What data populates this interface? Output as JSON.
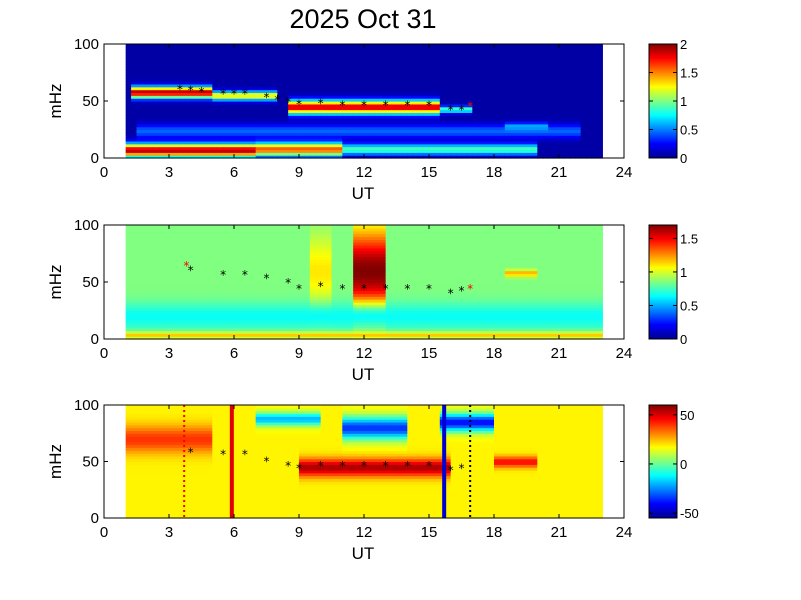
{
  "title": "2025 Oct 31",
  "colormap": [
    "#00008f",
    "#0000ff",
    "#0080ff",
    "#00ffff",
    "#80ff80",
    "#ffff00",
    "#ff8000",
    "#ff0000",
    "#800000"
  ],
  "chart_data": [
    {
      "type": "heatmap",
      "name": "panel-1",
      "xlabel": "UT",
      "ylabel": "mHz",
      "xlim": [
        0,
        24
      ],
      "ylim": [
        0,
        100
      ],
      "xticks": [
        "0",
        "3",
        "6",
        "9",
        "12",
        "15",
        "18",
        "21",
        "24"
      ],
      "yticks": [
        "0",
        "50",
        "100"
      ],
      "data_range_hours": [
        1,
        23
      ],
      "colorbar": {
        "range": [
          0,
          2
        ],
        "ticks": [
          "0",
          "0.5",
          "1",
          "1.5",
          "2"
        ],
        "tick_values": [
          0,
          0.5,
          1,
          1.5,
          2
        ]
      },
      "background_value": 0.05,
      "features": [
        {
          "t0": 1.3,
          "t1": 5.0,
          "f": 58,
          "h": 5,
          "v": 1.9
        },
        {
          "t0": 5.0,
          "t1": 8.0,
          "f": 55,
          "h": 4,
          "v": 1.3
        },
        {
          "t0": 8.5,
          "t1": 15.5,
          "f": 45,
          "h": 6,
          "v": 1.85
        },
        {
          "t0": 15.5,
          "t1": 17.0,
          "f": 43,
          "h": 3,
          "v": 0.9
        },
        {
          "t0": 1.0,
          "t1": 7.0,
          "f": 7,
          "h": 6,
          "v": 1.9
        },
        {
          "t0": 7.0,
          "t1": 11.0,
          "f": 8,
          "h": 6,
          "v": 1.6
        },
        {
          "t0": 11.0,
          "t1": 20.0,
          "f": 8,
          "h": 5,
          "v": 0.9
        },
        {
          "t0": 1.5,
          "t1": 22.0,
          "f": 24,
          "h": 6,
          "v": 0.45
        },
        {
          "t0": 18.5,
          "t1": 20.5,
          "f": 28,
          "h": 3,
          "v": 0.6
        }
      ],
      "peak_markers": {
        "black": [
          [
            3.5,
            60
          ],
          [
            4.0,
            59
          ],
          [
            4.5,
            58
          ],
          [
            5.5,
            56
          ],
          [
            6.0,
            56
          ],
          [
            6.5,
            56
          ],
          [
            7.5,
            53
          ],
          [
            8.0,
            51
          ],
          [
            8.5,
            49
          ],
          [
            9.0,
            47
          ],
          [
            10.0,
            48
          ],
          [
            11.0,
            46
          ],
          [
            12.0,
            46
          ],
          [
            13.0,
            46
          ],
          [
            14.0,
            46
          ],
          [
            15.0,
            46
          ],
          [
            16.0,
            42
          ],
          [
            16.5,
            42
          ]
        ],
        "red": [
          [
            16.9,
            45
          ]
        ]
      }
    },
    {
      "type": "heatmap",
      "name": "panel-2",
      "xlabel": "UT",
      "ylabel": "mHz",
      "xlim": [
        0,
        24
      ],
      "ylim": [
        0,
        100
      ],
      "xticks": [
        "0",
        "3",
        "6",
        "9",
        "12",
        "15",
        "18",
        "21",
        "24"
      ],
      "yticks": [
        "0",
        "50",
        "100"
      ],
      "data_range_hours": [
        1,
        23
      ],
      "colorbar": {
        "range": [
          0,
          1.7
        ],
        "ticks": [
          "0",
          "0.5",
          "1",
          "1.5"
        ],
        "tick_values": [
          0,
          0.5,
          1,
          1.5
        ]
      },
      "background_value": 0.85,
      "features": [
        {
          "t0": 11.6,
          "t1": 13.0,
          "f": 60,
          "h": 35,
          "v": 1.7
        },
        {
          "t0": 9.5,
          "t1": 10.5,
          "f": 60,
          "h": 30,
          "v": 1.1
        },
        {
          "t0": 1.0,
          "t1": 23.0,
          "f": 4,
          "h": 3,
          "v": 1.25
        },
        {
          "t0": 18.5,
          "t1": 20.0,
          "f": 58,
          "h": 3,
          "v": 1.2
        },
        {
          "t0": 1.0,
          "t1": 23.0,
          "f": 20,
          "h": 12,
          "v": 0.65
        }
      ],
      "peak_markers": {
        "black": [
          [
            4.0,
            60
          ],
          [
            5.5,
            56
          ],
          [
            6.5,
            56
          ],
          [
            7.5,
            53
          ],
          [
            8.5,
            49
          ],
          [
            9.0,
            44
          ],
          [
            10.0,
            46
          ],
          [
            11.0,
            44
          ],
          [
            12.0,
            44
          ],
          [
            13.0,
            44
          ],
          [
            14.0,
            44
          ],
          [
            15.0,
            44
          ],
          [
            16.0,
            40
          ],
          [
            16.5,
            42
          ]
        ],
        "red": [
          [
            3.8,
            64
          ],
          [
            16.9,
            44
          ]
        ]
      }
    },
    {
      "type": "heatmap",
      "name": "panel-3",
      "xlabel": "UT",
      "ylabel": "mHz",
      "xlim": [
        0,
        24
      ],
      "ylim": [
        0,
        100
      ],
      "xticks": [
        "0",
        "3",
        "6",
        "9",
        "12",
        "15",
        "18",
        "21",
        "24"
      ],
      "yticks": [
        "0",
        "50",
        "100"
      ],
      "data_range_hours": [
        1,
        23
      ],
      "colorbar": {
        "range": [
          -55,
          60
        ],
        "ticks": [
          "-50",
          "0",
          "50"
        ],
        "tick_values": [
          -50,
          0,
          50
        ]
      },
      "background_value": 18,
      "features": [
        {
          "t0": 9.0,
          "t1": 16.0,
          "f": 45,
          "h": 8,
          "v": 55
        },
        {
          "t0": 18.0,
          "t1": 20.0,
          "f": 50,
          "h": 5,
          "v": 45
        },
        {
          "t0": 1.0,
          "t1": 5.0,
          "f": 70,
          "h": 12,
          "v": 40
        },
        {
          "t0": 11.0,
          "t1": 14.0,
          "f": 80,
          "h": 10,
          "v": -35
        },
        {
          "t0": 15.5,
          "t1": 18.0,
          "f": 85,
          "h": 8,
          "v": -40
        },
        {
          "t0": 7.0,
          "t1": 10.0,
          "f": 88,
          "h": 6,
          "v": -20
        }
      ],
      "peak_markers": {
        "black": [
          [
            4.0,
            58
          ],
          [
            5.5,
            56
          ],
          [
            6.5,
            56
          ],
          [
            7.5,
            50
          ],
          [
            8.5,
            46
          ],
          [
            9.0,
            44
          ],
          [
            10.0,
            46
          ],
          [
            11.0,
            46
          ],
          [
            12.0,
            46
          ],
          [
            13.0,
            46
          ],
          [
            14.0,
            46
          ],
          [
            15.0,
            46
          ],
          [
            16.0,
            42
          ],
          [
            16.5,
            44
          ]
        ],
        "red": []
      },
      "vertical_lines": [
        {
          "t": 5.9,
          "color": "#e00000",
          "style": "solid"
        },
        {
          "t": 15.7,
          "color": "#0000d0",
          "style": "solid"
        },
        {
          "t": 3.7,
          "color": "#ff0000",
          "style": "dotted"
        },
        {
          "t": 16.9,
          "color": "#000000",
          "style": "dotted"
        }
      ]
    }
  ]
}
